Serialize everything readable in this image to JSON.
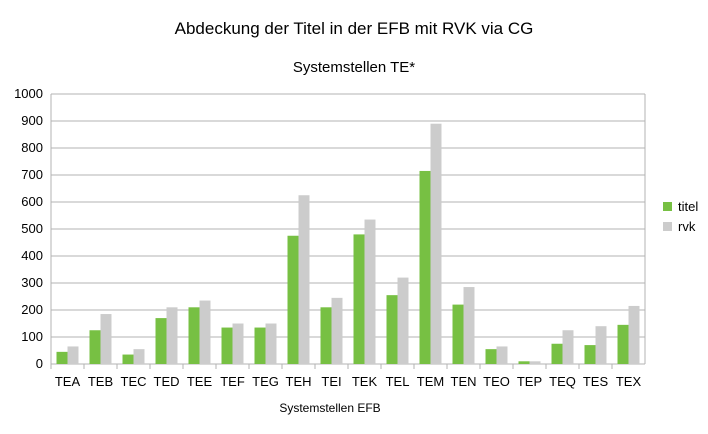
{
  "chart_data": {
    "type": "bar",
    "title": "Abdeckung der Titel in der EFB mit RVK via CG",
    "subtitle": "Systemstellen TE*",
    "xlabel": "Systemstellen EFB",
    "ylabel": "",
    "ylim": [
      0,
      1000
    ],
    "yticks": [
      0,
      100,
      200,
      300,
      400,
      500,
      600,
      700,
      800,
      900,
      1000
    ],
    "grid": true,
    "legend_position": "right",
    "categories": [
      "TEA",
      "TEB",
      "TEC",
      "TED",
      "TEE",
      "TEF",
      "TEG",
      "TEH",
      "TEI",
      "TEK",
      "TEL",
      "TEM",
      "TEN",
      "TEO",
      "TEP",
      "TEQ",
      "TES",
      "TEX"
    ],
    "series": [
      {
        "name": "titel",
        "color": "#77c043",
        "values": [
          45,
          125,
          35,
          170,
          210,
          135,
          135,
          475,
          210,
          480,
          255,
          715,
          220,
          55,
          10,
          75,
          70,
          145
        ]
      },
      {
        "name": "rvk",
        "color": "#cccccc",
        "values": [
          65,
          185,
          55,
          210,
          235,
          150,
          150,
          625,
          245,
          535,
          320,
          890,
          285,
          65,
          10,
          125,
          140,
          215
        ]
      }
    ]
  }
}
